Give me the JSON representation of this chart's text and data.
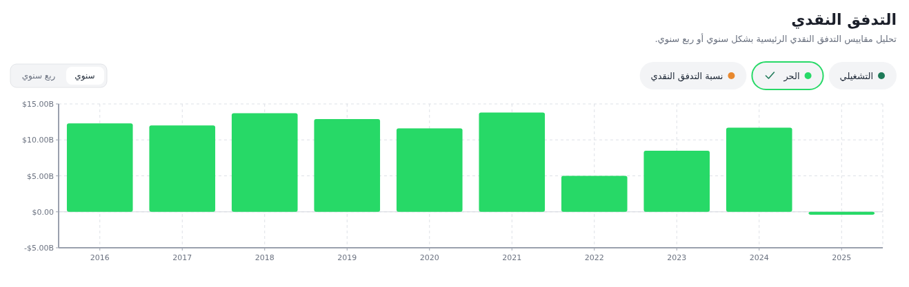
{
  "chart_data": {
    "type": "bar",
    "title": "التدفق النقدي",
    "subtitle": "تحليل مقاييس التدفق النقدي الرئيسية بشكل سنوي أو ربع سنوي.",
    "annotations": [
      "سنوي",
      "ربع سنوي"
    ],
    "categories": [
      "2016",
      "2017",
      "2018",
      "2019",
      "2020",
      "2021",
      "2022",
      "2023",
      "2024",
      "2025"
    ],
    "series": [
      {
        "name": "التشغيلي",
        "color": "#1e7a58",
        "values": [
          null,
          null,
          null,
          null,
          null,
          null,
          null,
          null,
          null,
          null
        ]
      },
      {
        "name": "الحر",
        "color": "#27d967",
        "values": [
          12.3,
          12.0,
          13.7,
          12.9,
          11.6,
          13.8,
          5.0,
          8.5,
          11.7,
          -0.4
        ]
      },
      {
        "name": "نسبة التدفق النقدي",
        "color": "#e8892f",
        "values": [
          null,
          null,
          null,
          null,
          null,
          null,
          null,
          null,
          null,
          null
        ]
      }
    ],
    "ylim": [
      -5,
      15
    ],
    "yticks": [
      {
        "value": 15,
        "label": "$15.00B"
      },
      {
        "value": 10,
        "label": "$10.00B"
      },
      {
        "value": 5,
        "label": "$5.00B"
      },
      {
        "value": 0,
        "label": "$0.00"
      },
      {
        "value": -5,
        "label": "-$5.00B"
      }
    ],
    "grid": true,
    "legend": "top right"
  }
}
